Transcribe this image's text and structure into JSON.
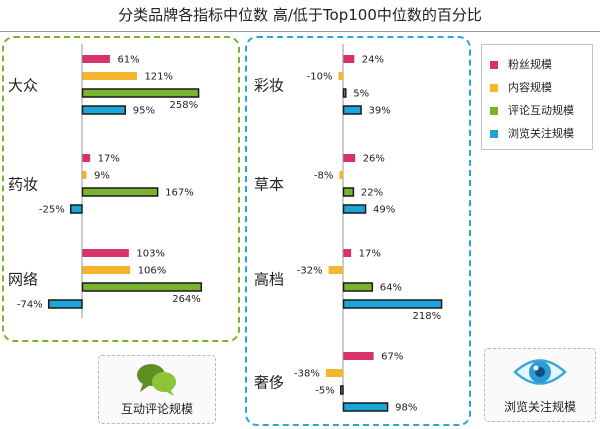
{
  "title": "分类品牌各指标中位数 高/低于Top100中位数的百分比",
  "colors": {
    "粉丝规模": "#d6336c",
    "内容规模": "#f5b52f",
    "评论互动规模": "#7ab32f",
    "浏览关注规模": "#1aa6d9",
    "green_frame": "#7ab32f",
    "blue_frame": "#29a6d8"
  },
  "legend": {
    "items": [
      {
        "label": "粉丝规模",
        "color": "#d6336c"
      },
      {
        "label": "内容规模",
        "color": "#f5b52f"
      },
      {
        "label": "评论互动规模",
        "color": "#7ab32f"
      },
      {
        "label": "浏览关注规模",
        "color": "#1aa6d9"
      }
    ]
  },
  "badges": {
    "comment": {
      "label": "互动评论规模",
      "icon": "speech-bubbles-icon"
    },
    "view": {
      "label": "浏览关注规模",
      "icon": "eye-icon"
    }
  },
  "chart_data": {
    "type": "bar",
    "orientation": "horizontal",
    "value_unit": "%",
    "series_names": [
      "粉丝规模",
      "内容规模",
      "评论互动规模",
      "浏览关注规模"
    ],
    "highlighted_series": [
      "评论互动规模",
      "浏览关注规模"
    ],
    "panels": [
      {
        "name": "left",
        "categories": [
          {
            "name": "大众",
            "values": [
              61,
              121,
              258,
              95
            ],
            "labels": [
              "61%",
              "121%",
              "258%",
              "95%"
            ]
          },
          {
            "name": "药妆",
            "values": [
              17,
              9,
              167,
              -25
            ],
            "labels": [
              "17%",
              "9%",
              "167%",
              "-25%"
            ]
          },
          {
            "name": "网络",
            "values": [
              103,
              106,
              264,
              -74
            ],
            "labels": [
              "103%",
              "106%",
              "264%",
              "-74%"
            ]
          }
        ]
      },
      {
        "name": "right",
        "categories": [
          {
            "name": "彩妆",
            "values": [
              24,
              -10,
              5,
              39
            ],
            "labels": [
              "24%",
              "-10%",
              "5%",
              "39%"
            ]
          },
          {
            "name": "草本",
            "values": [
              26,
              -8,
              22,
              49
            ],
            "labels": [
              "26%",
              "-8%",
              "22%",
              "49%"
            ]
          },
          {
            "name": "高档",
            "values": [
              17,
              -32,
              64,
              218
            ],
            "labels": [
              "17%",
              "-32%",
              "64%",
              "218%"
            ]
          },
          {
            "name": "奢侈",
            "values": [
              67,
              -38,
              -5,
              98
            ],
            "labels": [
              "67%",
              "-38%",
              "-5%",
              "98%"
            ]
          }
        ]
      }
    ]
  }
}
